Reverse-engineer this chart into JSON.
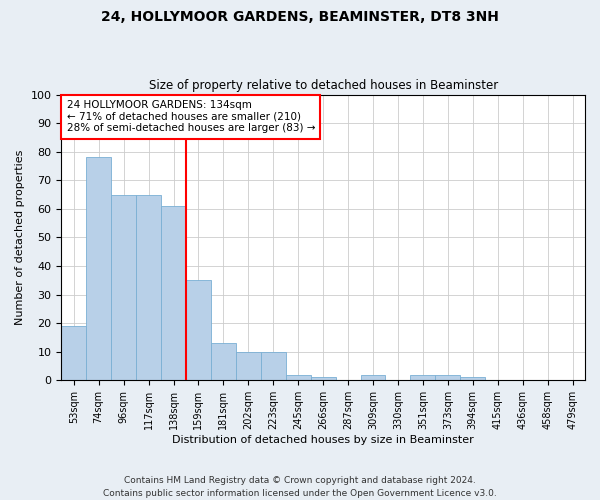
{
  "title": "24, HOLLYMOOR GARDENS, BEAMINSTER, DT8 3NH",
  "subtitle": "Size of property relative to detached houses in Beaminster",
  "xlabel": "Distribution of detached houses by size in Beaminster",
  "ylabel": "Number of detached properties",
  "bar_color": "#b8d0e8",
  "bar_edge_color": "#7aafd4",
  "categories": [
    "53sqm",
    "74sqm",
    "96sqm",
    "117sqm",
    "138sqm",
    "159sqm",
    "181sqm",
    "202sqm",
    "223sqm",
    "245sqm",
    "266sqm",
    "287sqm",
    "309sqm",
    "330sqm",
    "351sqm",
    "373sqm",
    "394sqm",
    "415sqm",
    "436sqm",
    "458sqm",
    "479sqm"
  ],
  "values": [
    19,
    78,
    65,
    65,
    61,
    35,
    13,
    10,
    10,
    2,
    1,
    0,
    2,
    0,
    2,
    2,
    1,
    0,
    0,
    0,
    0
  ],
  "ylim": [
    0,
    100
  ],
  "yticks": [
    0,
    10,
    20,
    30,
    40,
    50,
    60,
    70,
    80,
    90,
    100
  ],
  "annotation_text": "24 HOLLYMOOR GARDENS: 134sqm\n← 71% of detached houses are smaller (210)\n28% of semi-detached houses are larger (83) →",
  "vline_x": 4.5,
  "footer": "Contains HM Land Registry data © Crown copyright and database right 2024.\nContains public sector information licensed under the Open Government Licence v3.0.",
  "bg_color": "#e8eef4",
  "plot_bg_color": "#ffffff",
  "grid_color": "#cccccc"
}
